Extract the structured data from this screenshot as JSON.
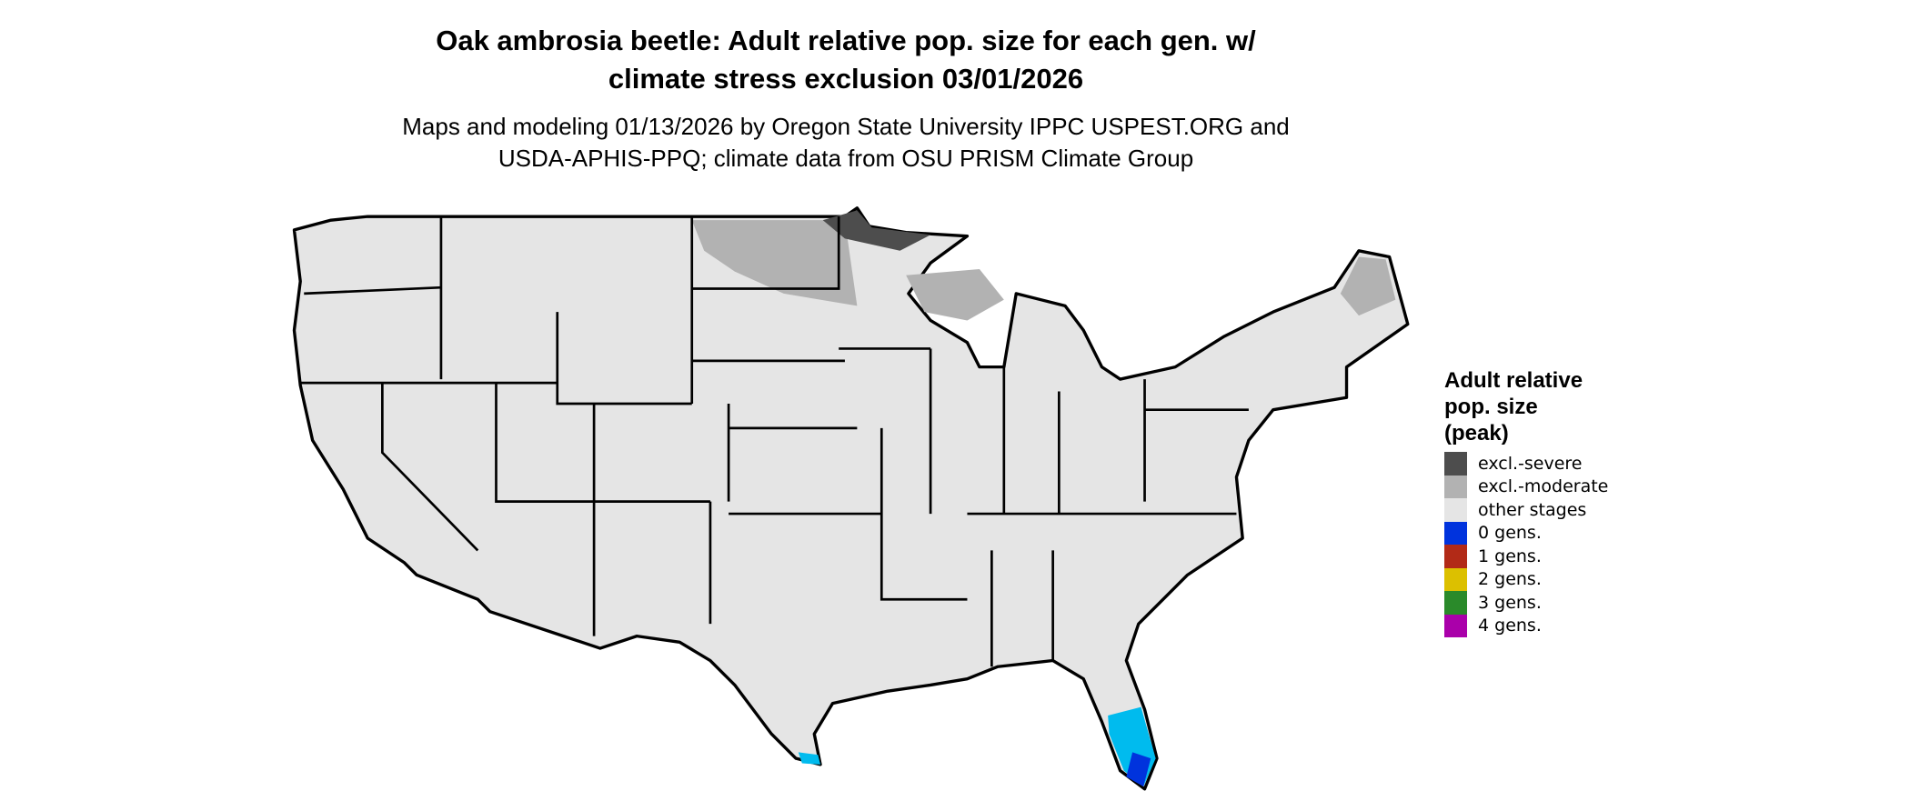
{
  "title_line1": "Oak ambrosia beetle: Adult relative pop. size for each gen. w/",
  "title_line2": "climate stress exclusion 03/01/2026",
  "subtitle_line1": "Maps and modeling 01/13/2026 by Oregon State University IPPC USPEST.ORG and",
  "subtitle_line2": "USDA-APHIS-PPQ; climate data from OSU PRISM Climate Group",
  "map": {
    "region": "Contiguous United States",
    "land_color": "#e5e5e5",
    "border_color": "#000000"
  },
  "legend": {
    "title_line1": "Adult relative",
    "title_line2": "pop. size",
    "title_line3": "(peak)",
    "items": [
      {
        "label": "excl.-severe",
        "color": "#4d4d4d"
      },
      {
        "label": "excl.-moderate",
        "color": "#b2b2b2"
      },
      {
        "label": "other stages",
        "color": "#e5e5e5"
      },
      {
        "label": "0 gens.",
        "color": "#0033dd"
      },
      {
        "label": "1 gens.",
        "color": "#b22a17"
      },
      {
        "label": "2 gens.",
        "color": "#dcc000"
      },
      {
        "label": "3 gens.",
        "color": "#2a8a2a"
      },
      {
        "label": "4 gens.",
        "color": "#aa00aa"
      }
    ]
  }
}
